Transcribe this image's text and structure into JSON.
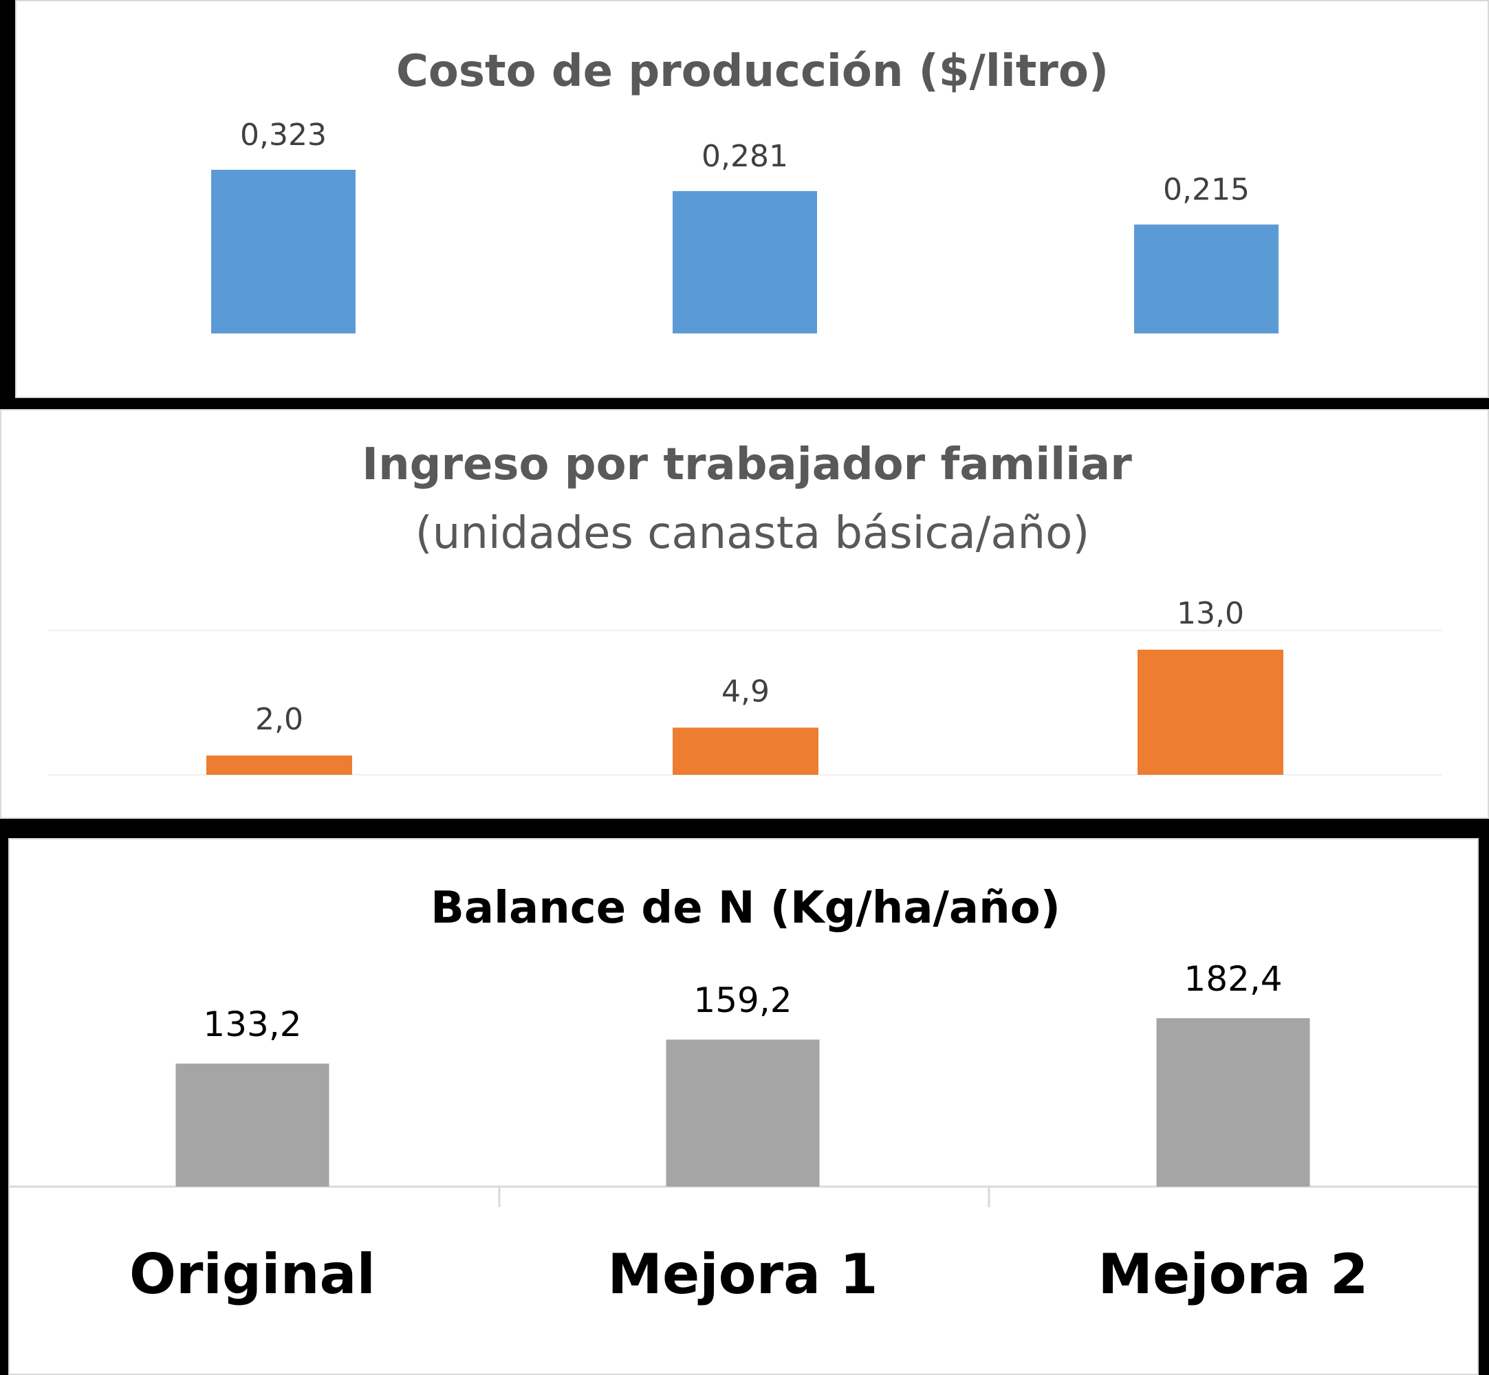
{
  "chart_data": [
    {
      "type": "bar",
      "title": "Costo de producción ($/litro)",
      "categories": [
        "Original",
        "Mejora 1",
        "Mejora 2"
      ],
      "values": [
        0.323,
        0.281,
        0.215
      ],
      "data_labels": [
        "0,323",
        "0,281",
        "0,215"
      ],
      "ylim": [
        0,
        0.323
      ],
      "grid": false,
      "color": "#5b9bd5"
    },
    {
      "type": "bar",
      "title": "Ingreso por trabajador familiar",
      "subtitle": "(unidades canasta básica/año)",
      "categories": [
        "Original",
        "Mejora 1",
        "Mejora 2"
      ],
      "values": [
        2.0,
        4.9,
        13.0
      ],
      "data_labels": [
        "2,0",
        "4,9",
        "13,0"
      ],
      "ylim": [
        0,
        30
      ],
      "grid": true,
      "color": "#ed7d31"
    },
    {
      "type": "bar",
      "title": "Balance de N (Kg/ha/año)",
      "categories": [
        "Original",
        "Mejora 1",
        "Mejora 2"
      ],
      "category_labels": [
        "Original",
        "Mejora 1",
        "Mejora 2"
      ],
      "values": [
        133.2,
        159.2,
        182.4
      ],
      "data_labels": [
        "133,2",
        "159,2",
        "182,4"
      ],
      "ylim": [
        0,
        182.4
      ],
      "grid": false,
      "color": "#a5a5a5"
    }
  ]
}
